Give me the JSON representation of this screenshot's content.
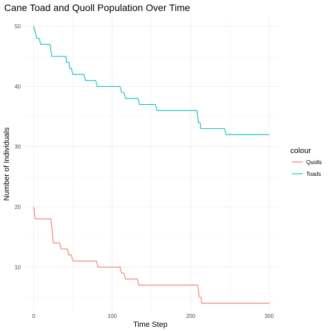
{
  "chart_data": {
    "type": "line",
    "title": "Cane Toad and Quoll Population Over Time",
    "xlabel": "Time Step",
    "ylabel": "Number of Individuals",
    "xlim": [
      -13,
      312
    ],
    "ylim": [
      2.7,
      51.5
    ],
    "x_ticks": [
      0,
      100,
      200,
      300
    ],
    "y_ticks": [
      10,
      20,
      30,
      40,
      50
    ],
    "grid": true,
    "legend": {
      "title": "colour",
      "position": "right"
    },
    "series": [
      {
        "name": "Quolls",
        "color": "#f8766d",
        "step": true,
        "points": [
          [
            0,
            20
          ],
          [
            2,
            18
          ],
          [
            22,
            18
          ],
          [
            25,
            14
          ],
          [
            33,
            14
          ],
          [
            35,
            13
          ],
          [
            43,
            13
          ],
          [
            45,
            12
          ],
          [
            48,
            12
          ],
          [
            50,
            11
          ],
          [
            80,
            11
          ],
          [
            82,
            10
          ],
          [
            110,
            10
          ],
          [
            112,
            9
          ],
          [
            115,
            9
          ],
          [
            117,
            8
          ],
          [
            132,
            8
          ],
          [
            134,
            7
          ],
          [
            209,
            7
          ],
          [
            211,
            5
          ],
          [
            213,
            5
          ],
          [
            214,
            4
          ],
          [
            300,
            4
          ]
        ]
      },
      {
        "name": "Toads",
        "color": "#00bfc4",
        "step": true,
        "points": [
          [
            0,
            50
          ],
          [
            2,
            49
          ],
          [
            4,
            48
          ],
          [
            7,
            48
          ],
          [
            9,
            47
          ],
          [
            21,
            47
          ],
          [
            23,
            45
          ],
          [
            41,
            45
          ],
          [
            42,
            44
          ],
          [
            45,
            44
          ],
          [
            46,
            43
          ],
          [
            48,
            43
          ],
          [
            50,
            42
          ],
          [
            64,
            42
          ],
          [
            66,
            41
          ],
          [
            79,
            41
          ],
          [
            81,
            40
          ],
          [
            110,
            40
          ],
          [
            112,
            39
          ],
          [
            115,
            39
          ],
          [
            117,
            38
          ],
          [
            133,
            38
          ],
          [
            135,
            37
          ],
          [
            155,
            37
          ],
          [
            157,
            36
          ],
          [
            208,
            36
          ],
          [
            210,
            34
          ],
          [
            212,
            34
          ],
          [
            213,
            33
          ],
          [
            243,
            33
          ],
          [
            245,
            32
          ],
          [
            300,
            32
          ]
        ]
      }
    ]
  }
}
